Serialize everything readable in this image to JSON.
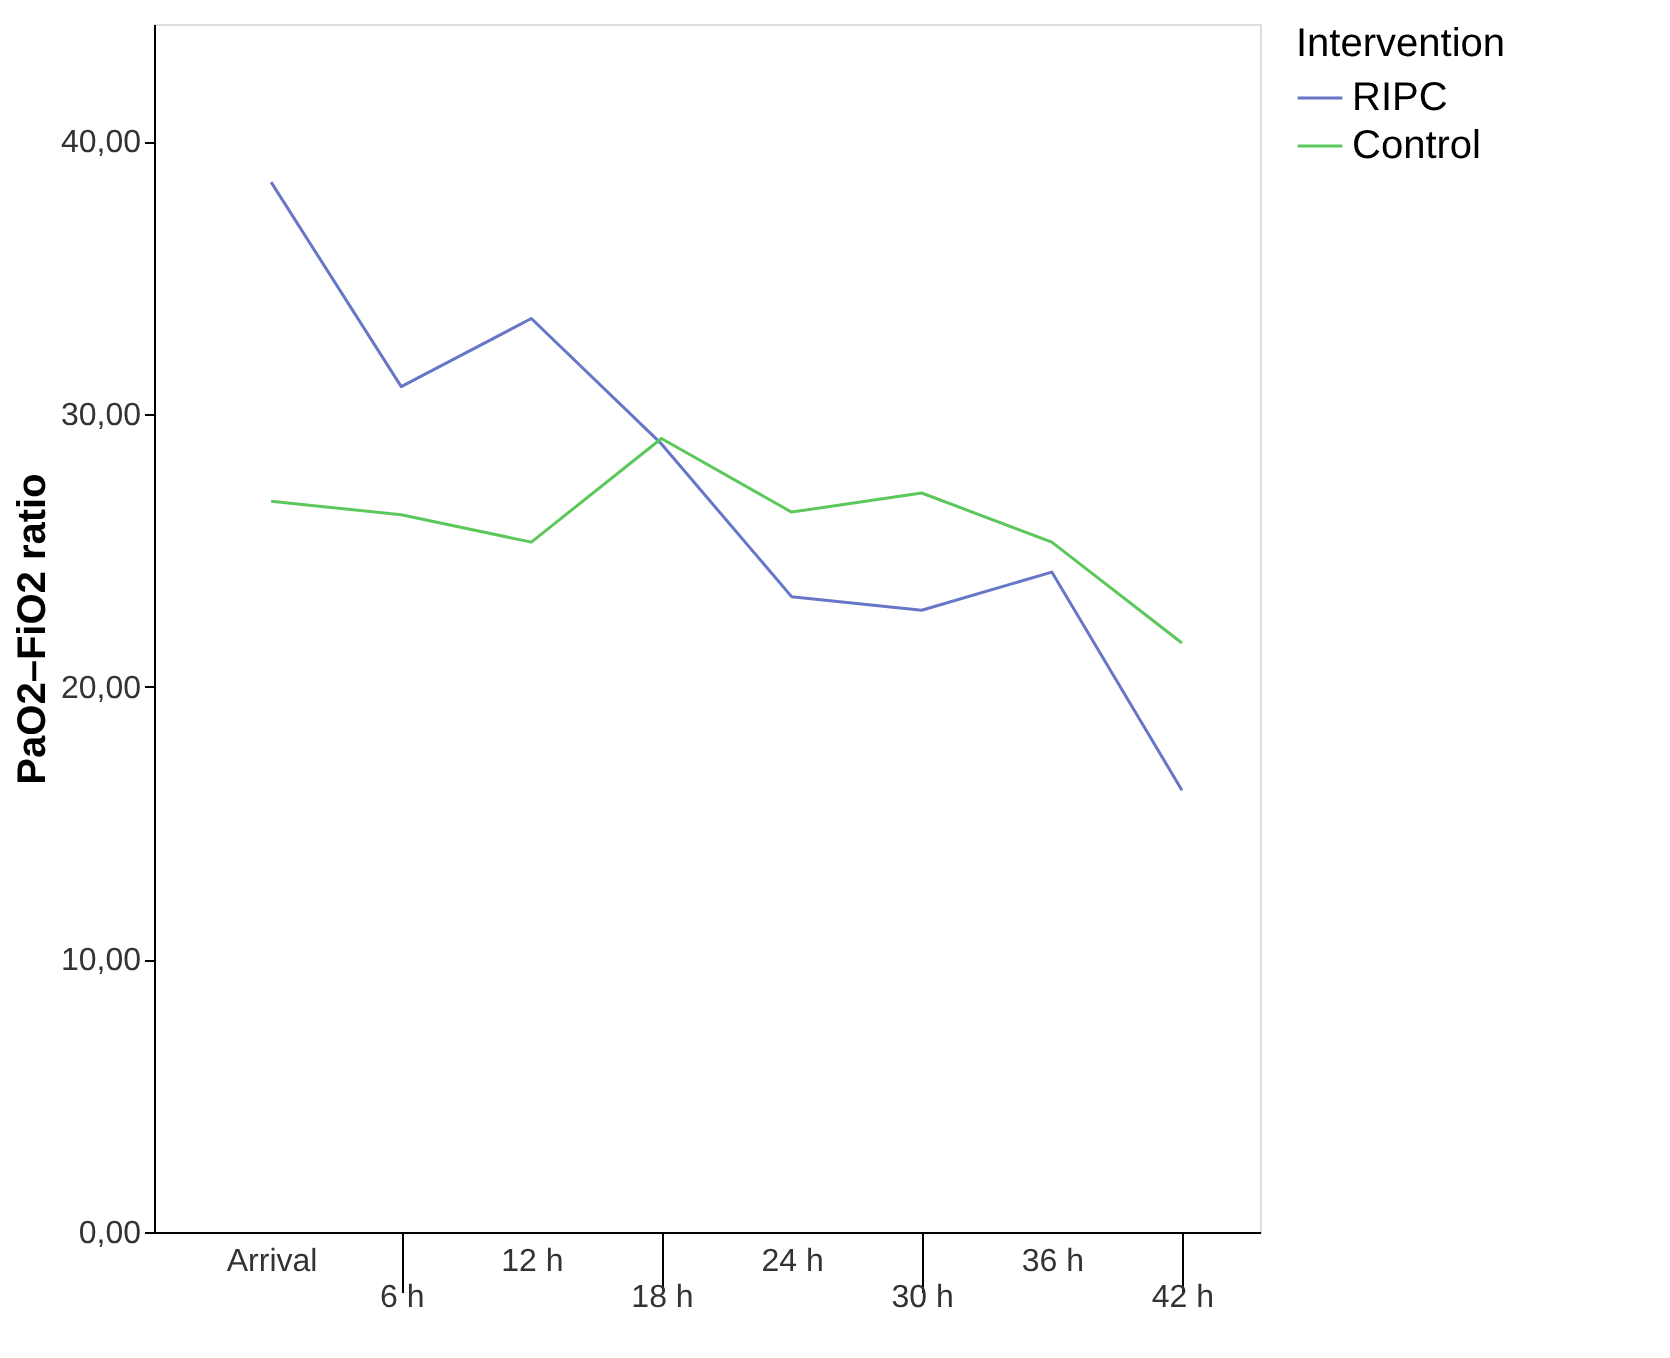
{
  "chart_data": {
    "type": "line",
    "ylabel": "PaO2–FiO2 ratio",
    "legend_title": "Intervention",
    "legend": "right",
    "grid": false,
    "marker": "none",
    "line_style": "solid",
    "categories": [
      "Arrival",
      "6 h",
      "12 h",
      "18 h",
      "24 h",
      "30 h",
      "36 h",
      "42 h"
    ],
    "ylim": [
      0,
      44.3
    ],
    "yticks": [
      {
        "value": 0,
        "label": "0,00"
      },
      {
        "value": 10,
        "label": "10,00"
      },
      {
        "value": 20,
        "label": "20,00"
      },
      {
        "value": 30,
        "label": "30,00"
      },
      {
        "value": 40,
        "label": "40,00"
      }
    ],
    "series": [
      {
        "name": "RIPC",
        "color": "#6677c8",
        "values": [
          38.5,
          31.0,
          33.5,
          28.9,
          23.3,
          22.8,
          24.2,
          16.2
        ]
      },
      {
        "name": "Control",
        "color": "#5cc85c",
        "values": [
          26.8,
          26.3,
          25.3,
          29.1,
          26.4,
          27.1,
          25.3,
          21.6
        ]
      }
    ]
  }
}
